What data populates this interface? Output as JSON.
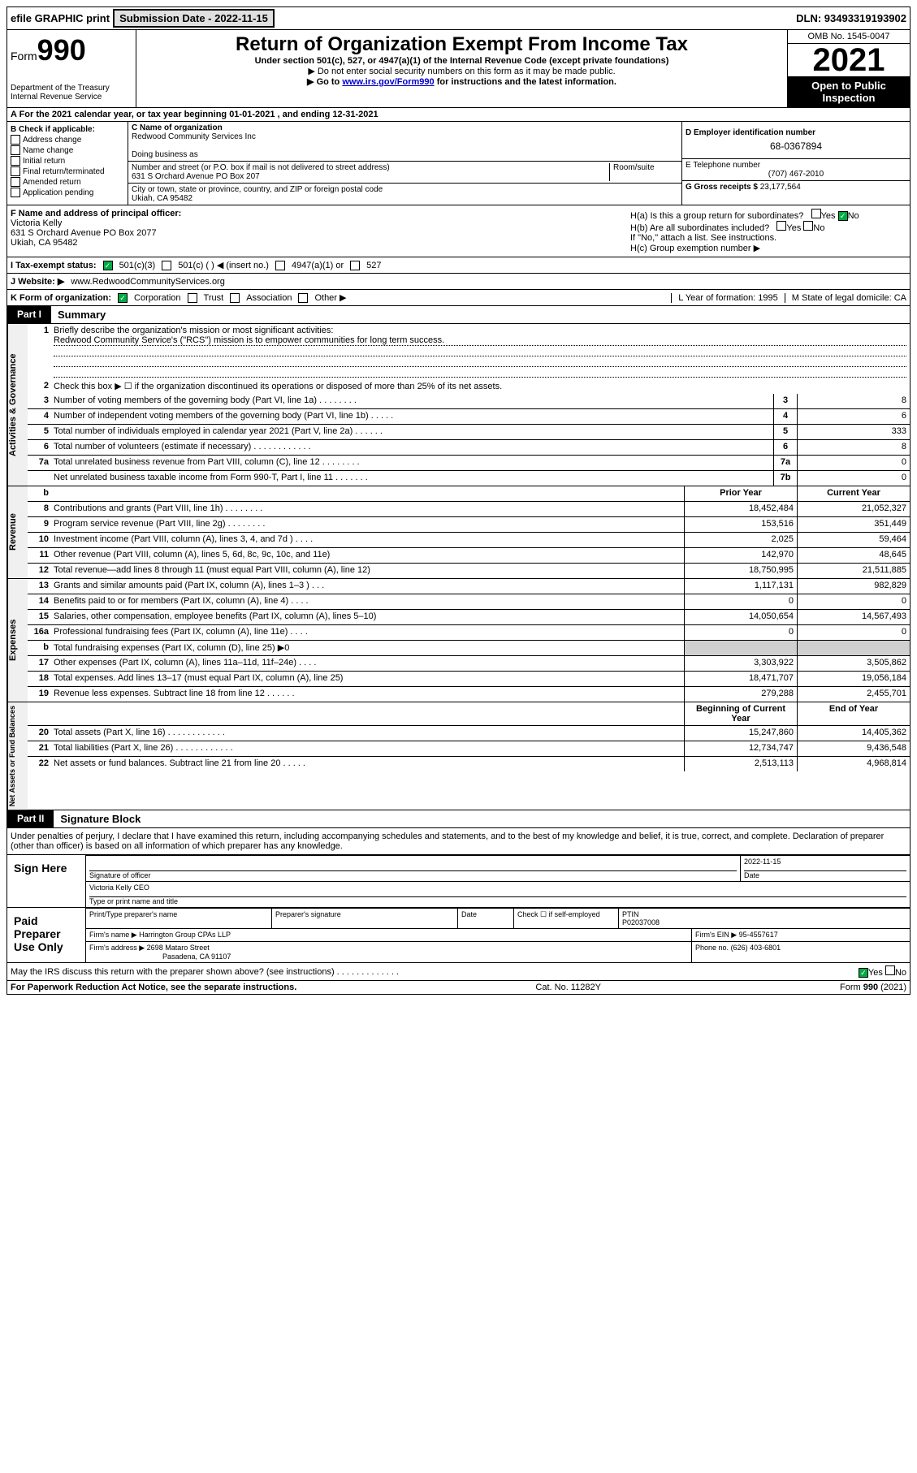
{
  "top": {
    "efile": "efile GRAPHIC print",
    "submission_label": "Submission Date - 2022-11-15",
    "dln": "DLN: 93493319193902"
  },
  "header": {
    "form_word": "Form",
    "form_num": "990",
    "dept": "Department of the Treasury",
    "irs": "Internal Revenue Service",
    "title": "Return of Organization Exempt From Income Tax",
    "sub1": "Under section 501(c), 527, or 4947(a)(1) of the Internal Revenue Code (except private foundations)",
    "sub2": "▶ Do not enter social security numbers on this form as it may be made public.",
    "sub3_pre": "▶ Go to ",
    "sub3_link": "www.irs.gov/Form990",
    "sub3_post": " for instructions and the latest information.",
    "omb": "OMB No. 1545-0047",
    "year": "2021",
    "open": "Open to Public Inspection"
  },
  "row_a": "A For the 2021 calendar year, or tax year beginning 01-01-2021    , and ending 12-31-2021",
  "col_b": {
    "label": "B Check if applicable:",
    "items": [
      "Address change",
      "Name change",
      "Initial return",
      "Final return/terminated",
      "Amended return",
      "Application pending"
    ]
  },
  "col_c": {
    "name_label": "C Name of organization",
    "name": "Redwood Community Services Inc",
    "dba_label": "Doing business as",
    "addr_label": "Number and street (or P.O. box if mail is not delivered to street address)",
    "room_label": "Room/suite",
    "addr": "631 S Orchard Avenue PO Box 207",
    "city_label": "City or town, state or province, country, and ZIP or foreign postal code",
    "city": "Ukiah, CA  95482"
  },
  "col_d": {
    "ein_label": "D Employer identification number",
    "ein": "68-0367894",
    "phone_label": "E Telephone number",
    "phone": "(707) 467-2010",
    "gross_label": "G Gross receipts $",
    "gross": "23,177,564"
  },
  "row_f": {
    "label": "F  Name and address of principal officer:",
    "name": "Victoria Kelly",
    "addr": "631 S Orchard Avenue PO Box 2077",
    "city": "Ukiah, CA  95482"
  },
  "row_h": {
    "ha": "H(a)  Is this a group return for subordinates?",
    "hb": "H(b)  Are all subordinates included?",
    "hb_note": "If \"No,\" attach a list. See instructions.",
    "hc": "H(c)  Group exemption number ▶",
    "yes": "Yes",
    "no": "No"
  },
  "row_i": {
    "label": "I    Tax-exempt status:",
    "opts": [
      "501(c)(3)",
      "501(c) (  ) ◀ (insert no.)",
      "4947(a)(1) or",
      "527"
    ]
  },
  "row_j": {
    "label": "J   Website: ▶",
    "value": "www.RedwoodCommunityServices.org"
  },
  "row_k": {
    "label": "K Form of organization:",
    "opts": [
      "Corporation",
      "Trust",
      "Association",
      "Other ▶"
    ]
  },
  "row_l": "L Year of formation: 1995",
  "row_m": "M State of legal domicile: CA",
  "part1": {
    "label": "Part I",
    "title": "Summary"
  },
  "summary": {
    "q1_label": "1",
    "q1_text": "Briefly describe the organization's mission or most significant activities:",
    "q1_answer": "Redwood Community Service's (\"RCS\") mission is to empower communities for long term success.",
    "q2_label": "2",
    "q2_text": "Check this box ▶ ☐  if the organization discontinued its operations or disposed of more than 25% of its net assets.",
    "governance": [
      {
        "n": "3",
        "d": "Number of voting members of the governing body (Part VI, line 1a)   .    .    .    .    .    .    .    .",
        "b": "3",
        "v": "8"
      },
      {
        "n": "4",
        "d": "Number of independent voting members of the governing body (Part VI, line 1b)   .    .    .    .    .",
        "b": "4",
        "v": "6"
      },
      {
        "n": "5",
        "d": "Total number of individuals employed in calendar year 2021 (Part V, line 2a)   .    .    .    .    .    .",
        "b": "5",
        "v": "333"
      },
      {
        "n": "6",
        "d": "Total number of volunteers (estimate if necessary)   .    .    .    .    .    .    .    .    .    .    .    .",
        "b": "6",
        "v": "8"
      },
      {
        "n": "7a",
        "d": "Total unrelated business revenue from Part VIII, column (C), line 12   .    .    .    .    .    .    .    .",
        "b": "7a",
        "v": "0"
      },
      {
        "n": "",
        "d": "Net unrelated business taxable income from Form 990-T, Part I, line 11   .    .    .    .    .    .    .",
        "b": "7b",
        "v": "0"
      }
    ],
    "prior": "Prior Year",
    "current": "Current Year",
    "revenue": [
      {
        "n": "8",
        "d": "Contributions and grants (Part VIII, line 1h)   .    .    .    .    .    .    .    .",
        "p": "18,452,484",
        "c": "21,052,327"
      },
      {
        "n": "9",
        "d": "Program service revenue (Part VIII, line 2g)   .    .    .    .    .    .    .    .",
        "p": "153,516",
        "c": "351,449"
      },
      {
        "n": "10",
        "d": "Investment income (Part VIII, column (A), lines 3, 4, and 7d )   .    .    .    .",
        "p": "2,025",
        "c": "59,464"
      },
      {
        "n": "11",
        "d": "Other revenue (Part VIII, column (A), lines 5, 6d, 8c, 9c, 10c, and 11e)",
        "p": "142,970",
        "c": "48,645"
      },
      {
        "n": "12",
        "d": "Total revenue—add lines 8 through 11 (must equal Part VIII, column (A), line 12)",
        "p": "18,750,995",
        "c": "21,511,885"
      }
    ],
    "expenses": [
      {
        "n": "13",
        "d": "Grants and similar amounts paid (Part IX, column (A), lines 1–3 )   .    .    .",
        "p": "1,117,131",
        "c": "982,829"
      },
      {
        "n": "14",
        "d": "Benefits paid to or for members (Part IX, column (A), line 4)   .    .    .    .",
        "p": "0",
        "c": "0"
      },
      {
        "n": "15",
        "d": "Salaries, other compensation, employee benefits (Part IX, column (A), lines 5–10)",
        "p": "14,050,654",
        "c": "14,567,493"
      },
      {
        "n": "16a",
        "d": "Professional fundraising fees (Part IX, column (A), line 11e)   .    .    .    .",
        "p": "0",
        "c": "0"
      },
      {
        "n": "b",
        "d": "Total fundraising expenses (Part IX, column (D), line 25) ▶0",
        "p": "",
        "c": "",
        "shaded": true
      },
      {
        "n": "17",
        "d": "Other expenses (Part IX, column (A), lines 11a–11d, 11f–24e)   .    .    .    .",
        "p": "3,303,922",
        "c": "3,505,862"
      },
      {
        "n": "18",
        "d": "Total expenses. Add lines 13–17 (must equal Part IX, column (A), line 25)",
        "p": "18,471,707",
        "c": "19,056,184"
      },
      {
        "n": "19",
        "d": "Revenue less expenses. Subtract line 18 from line 12   .    .    .    .    .    .",
        "p": "279,288",
        "c": "2,455,701"
      }
    ],
    "begin": "Beginning of Current Year",
    "end": "End of Year",
    "netassets": [
      {
        "n": "20",
        "d": "Total assets (Part X, line 16)   .    .    .    .    .    .    .    .    .    .    .    .",
        "p": "15,247,860",
        "c": "14,405,362"
      },
      {
        "n": "21",
        "d": "Total liabilities (Part X, line 26)   .    .    .    .    .    .    .    .    .    .    .    .",
        "p": "12,734,747",
        "c": "9,436,548"
      },
      {
        "n": "22",
        "d": "Net assets or fund balances. Subtract line 21 from line 20   .    .    .    .    .",
        "p": "2,513,113",
        "c": "4,968,814"
      }
    ]
  },
  "part2": {
    "label": "Part II",
    "title": "Signature Block"
  },
  "sig": {
    "declaration": "Under penalties of perjury, I declare that I have examined this return, including accompanying schedules and statements, and to the best of my knowledge and belief, it is true, correct, and complete. Declaration of preparer (other than officer) is based on all information of which preparer has any knowledge.",
    "sign_here": "Sign Here",
    "sig_officer": "Signature of officer",
    "date_label": "Date",
    "date": "2022-11-15",
    "officer_name": "Victoria Kelly CEO",
    "type_name": "Type or print name and title",
    "paid": "Paid Preparer Use Only",
    "prep_name_label": "Print/Type preparer's name",
    "prep_sig_label": "Preparer's signature",
    "check_label": "Check ☐   if self-employed",
    "ptin_label": "PTIN",
    "ptin": "P02037008",
    "firm_name_label": "Firm's name      ▶",
    "firm_name": "Harrington Group CPAs LLP",
    "firm_ein_label": "Firm's EIN ▶",
    "firm_ein": "95-4557617",
    "firm_addr_label": "Firm's address ▶",
    "firm_addr": "2698 Mataro Street",
    "firm_city": "Pasadena, CA  91107",
    "firm_phone_label": "Phone no.",
    "firm_phone": "(626) 403-6801",
    "may_discuss": "May the IRS discuss this return with the preparer shown above? (see instructions)   .    .    .    .    .    .    .    .    .    .    .    .    ."
  },
  "footer": {
    "paperwork": "For Paperwork Reduction Act Notice, see the separate instructions.",
    "cat": "Cat. No. 11282Y",
    "form": "Form 990 (2021)"
  }
}
